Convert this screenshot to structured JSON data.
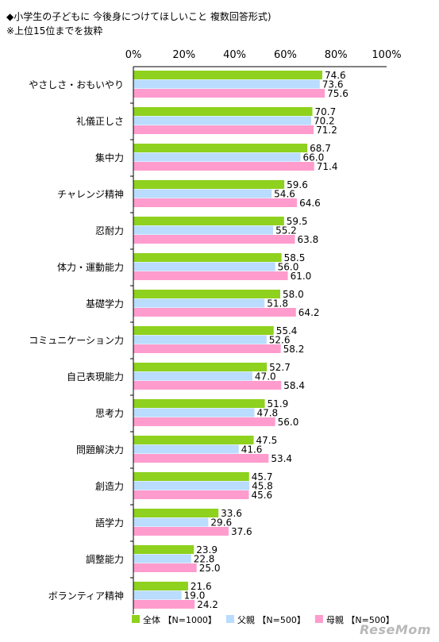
{
  "title_line1": "◆小学生の子どもに 今後身につけてほしいこと 複数回答形式)",
  "title_line2": "※上位15位までを抜粋",
  "watermark": "ReseMom",
  "colors": {
    "all": "#8ed11e",
    "father": "#b9dcff",
    "mother": "#ff9ccd",
    "axis": "#000000"
  },
  "chart_data": {
    "type": "bar",
    "orientation": "horizontal",
    "xlim": [
      0,
      100
    ],
    "xticks": [
      "0%",
      "20%",
      "40%",
      "60%",
      "80%",
      "100%"
    ],
    "categories": [
      "やさしさ・おもいやり",
      "礼儀正しさ",
      "集中力",
      "チャレンジ精神",
      "忍耐力",
      "体力・運動能力",
      "基礎学力",
      "コミュニケーション力",
      "自己表現能力",
      "思考力",
      "問題解決力",
      "創造力",
      "語学力",
      "調整能力",
      "ボランティア精神"
    ],
    "series": [
      {
        "name": "全体 【N=1000】",
        "color": "#8ed11e",
        "values": [
          74.6,
          70.7,
          68.7,
          59.6,
          59.5,
          58.5,
          58.0,
          55.4,
          52.7,
          51.9,
          47.5,
          45.7,
          33.6,
          23.9,
          21.6
        ]
      },
      {
        "name": "父親 【N=500】",
        "color": "#b9dcff",
        "values": [
          73.6,
          70.2,
          66.0,
          54.6,
          55.2,
          56.0,
          51.8,
          52.6,
          47.0,
          47.8,
          41.6,
          45.8,
          29.6,
          22.8,
          19.0
        ]
      },
      {
        "name": "母親 【N=500】",
        "color": "#ff9ccd",
        "values": [
          75.6,
          71.2,
          71.4,
          64.6,
          63.8,
          61.0,
          64.2,
          58.2,
          58.4,
          56.0,
          53.4,
          45.6,
          37.6,
          25.0,
          24.2
        ]
      }
    ],
    "grid": false,
    "legend_position": "bottom"
  }
}
